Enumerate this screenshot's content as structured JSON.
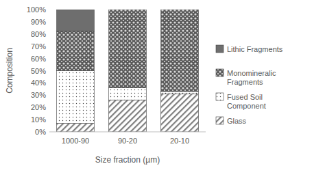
{
  "chart_data": {
    "type": "bar",
    "stacked": true,
    "grid": false,
    "legend": "right",
    "x_label": "Size fraction (µm)",
    "y_label": "Composition",
    "categories": [
      "1000-90",
      "90-20",
      "20-10"
    ],
    "series": [
      {
        "name": "Glass",
        "color": "#7f7f7f",
        "values": [
          7,
          26,
          31
        ]
      },
      {
        "name": "Fused Soil Component",
        "color": "#404040",
        "values": [
          43,
          10,
          2
        ]
      },
      {
        "name": "Monomineralic Fragments",
        "color": "#595959",
        "values": [
          32.5,
          64,
          67
        ]
      },
      {
        "name": "Lithic Fragments",
        "color": "#6e6e6e",
        "values": [
          17.5,
          0,
          0
        ]
      }
    ],
    "ylim": [
      0,
      100
    ],
    "yticks": [
      {
        "value": 0,
        "label": "0%"
      },
      {
        "value": 10,
        "label": "10%"
      },
      {
        "value": 20,
        "label": "20%"
      },
      {
        "value": 30,
        "label": "30%"
      },
      {
        "value": 40,
        "label": "40%"
      },
      {
        "value": 50,
        "label": "50%"
      },
      {
        "value": 60,
        "label": "60%"
      },
      {
        "value": 70,
        "label": "70%"
      },
      {
        "value": 80,
        "label": "80%"
      },
      {
        "value": 90,
        "label": "90%"
      },
      {
        "value": 100,
        "label": "100%"
      }
    ]
  }
}
